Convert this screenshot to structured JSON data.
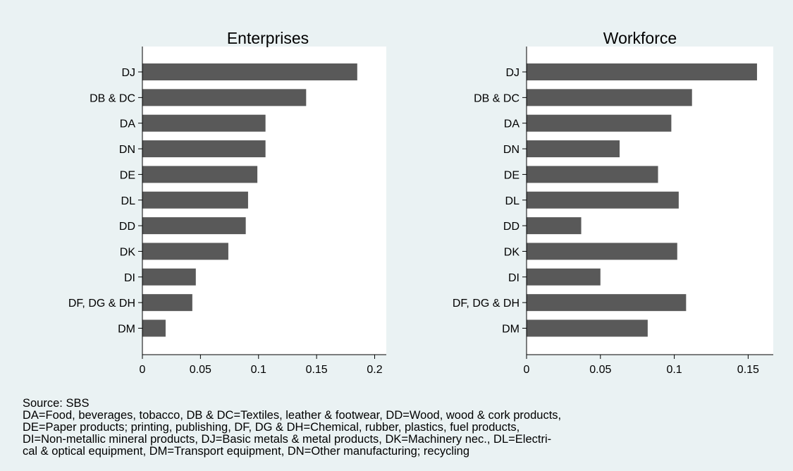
{
  "colors": {
    "background": "#eaf2f3",
    "plot_background": "#ffffff",
    "bar": "#595959"
  },
  "chart_data": [
    {
      "type": "bar",
      "orientation": "horizontal",
      "title": "Enterprises",
      "categories": [
        "DJ",
        "DB & DC",
        "DA",
        "DN",
        "DE",
        "DL",
        "DD",
        "DK",
        "DI",
        "DF, DG & DH",
        "DM"
      ],
      "values": [
        0.185,
        0.141,
        0.106,
        0.106,
        0.099,
        0.091,
        0.089,
        0.074,
        0.046,
        0.043,
        0.02
      ],
      "xlim": [
        0,
        0.21
      ],
      "ticks": [
        0,
        0.05,
        0.1,
        0.15,
        0.2
      ],
      "tick_labels": [
        "0",
        "0.05",
        "0.1",
        "0.15",
        "0.2"
      ],
      "grid": false
    },
    {
      "type": "bar",
      "orientation": "horizontal",
      "title": "Workforce",
      "categories": [
        "DJ",
        "DB & DC",
        "DA",
        "DN",
        "DE",
        "DL",
        "DD",
        "DK",
        "DI",
        "DF, DG & DH",
        "DM"
      ],
      "values": [
        0.156,
        0.112,
        0.098,
        0.063,
        0.089,
        0.103,
        0.037,
        0.102,
        0.05,
        0.108,
        0.082
      ],
      "xlim": [
        0,
        0.167
      ],
      "ticks": [
        0,
        0.05,
        0.1,
        0.15
      ],
      "tick_labels": [
        "0",
        "0.05",
        "0.1",
        "0.15"
      ],
      "grid": false
    }
  ],
  "notes": {
    "source": "Source: SBS",
    "lines": [
      "DA=Food, beverages, tobacco, DB & DC=Textiles, leather & footwear, DD=Wood, wood & cork products,",
      "DE=Paper products; printing, publishing, DF, DG & DH=Chemical, rubber, plastics, fuel products,",
      "DI=Non-metallic mineral products, DJ=Basic metals & metal products, DK=Machinery nec., DL=Electri-",
      "cal & optical equipment, DM=Transport equipment, DN=Other manufacturing; recycling"
    ]
  }
}
